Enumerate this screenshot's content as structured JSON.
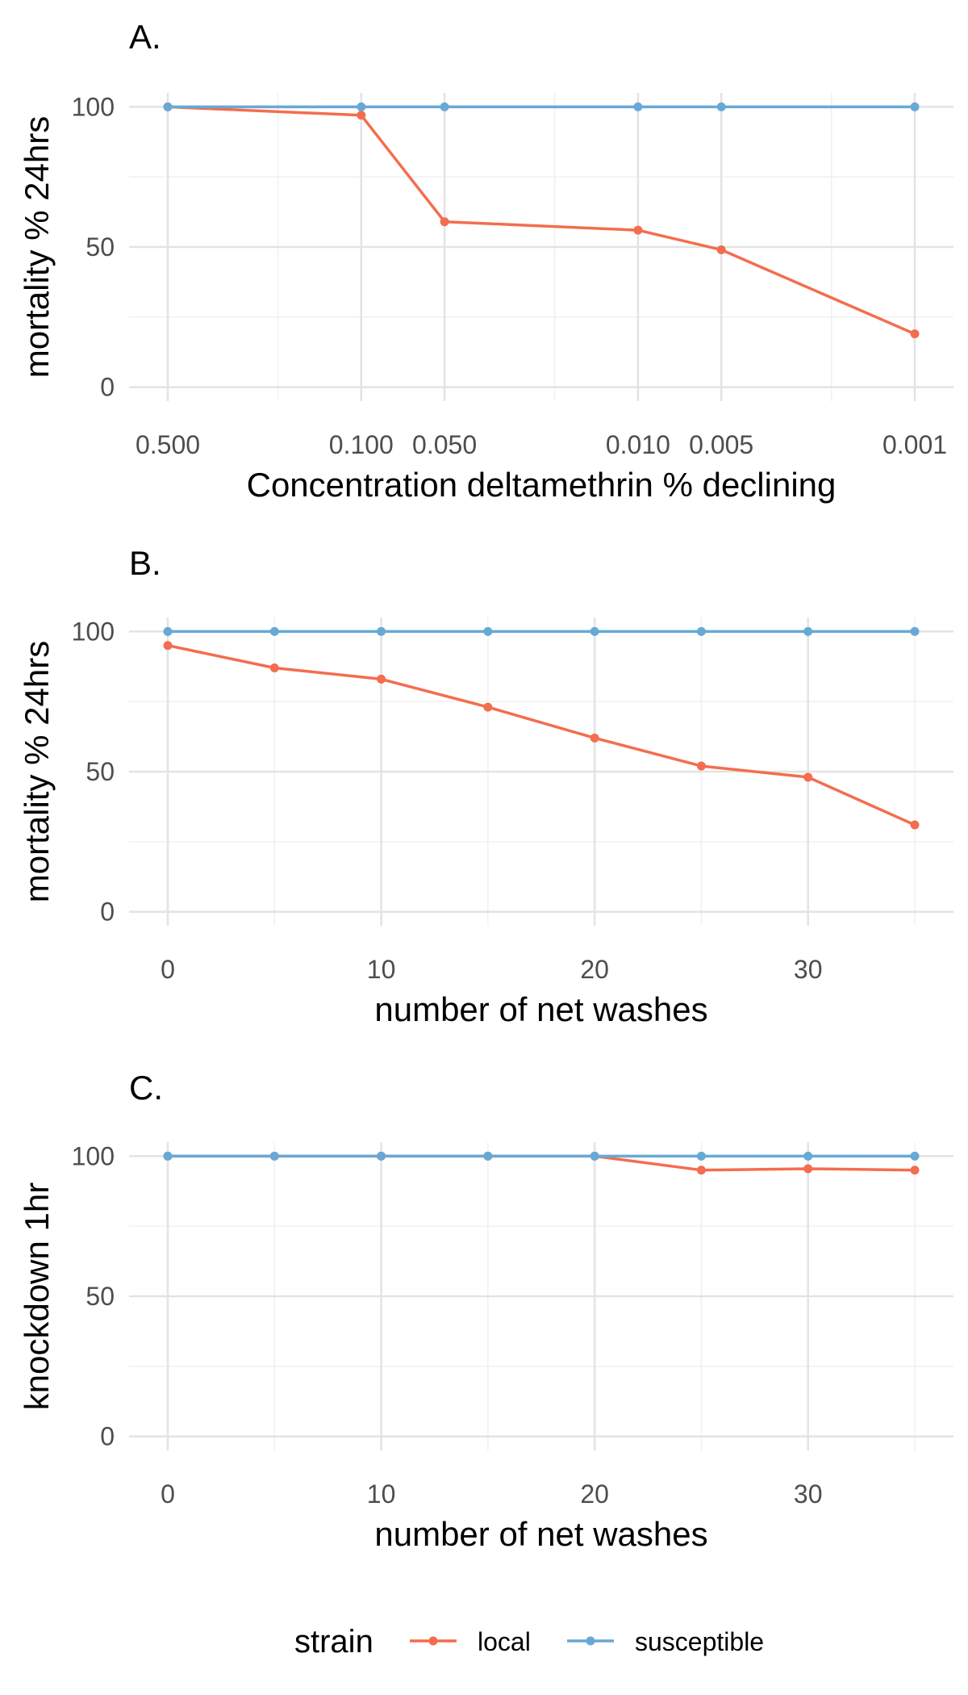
{
  "colors": {
    "local": "#F46D4E",
    "susceptible": "#67A9D6",
    "grid_major": "#E3E3E3",
    "grid_minor": "#F0F0F0"
  },
  "legend": {
    "title": "strain",
    "items": [
      {
        "name": "local",
        "color_key": "local"
      },
      {
        "name": "susceptible",
        "color_key": "susceptible"
      }
    ]
  },
  "chart_data": [
    {
      "type": "line",
      "panel": "A.",
      "xlabel": "Concentration deltamethrin % declining",
      "ylabel": "mortality % 24hrs",
      "x_scale": "log10-reversed",
      "x": [
        0.5,
        0.1,
        0.05,
        0.01,
        0.005,
        0.001
      ],
      "xticks": [
        0.5,
        0.1,
        0.05,
        0.01,
        0.005,
        0.001
      ],
      "xtick_labels": [
        "0.500",
        "0.100",
        "0.050",
        "0.010",
        "0.005",
        "0.001"
      ],
      "xlim": [
        0.5,
        0.001
      ],
      "ylim": [
        0,
        100
      ],
      "yticks": [
        0,
        50,
        100
      ],
      "ytick_labels": [
        "0",
        "50",
        "100"
      ],
      "grid": true,
      "series": [
        {
          "name": "local",
          "values": [
            100,
            97,
            59,
            56,
            49,
            19
          ]
        },
        {
          "name": "susceptible",
          "values": [
            100,
            100,
            100,
            100,
            100,
            100
          ]
        }
      ]
    },
    {
      "type": "line",
      "panel": "B.",
      "xlabel": "number of net washes",
      "ylabel": "mortality % 24hrs",
      "x": [
        0,
        5,
        10,
        15,
        20,
        25,
        30,
        35
      ],
      "xticks": [
        0,
        10,
        20,
        30
      ],
      "xtick_labels": [
        "0",
        "10",
        "20",
        "30"
      ],
      "xlim": [
        0,
        35
      ],
      "ylim": [
        0,
        100
      ],
      "yticks": [
        0,
        50,
        100
      ],
      "ytick_labels": [
        "0",
        "50",
        "100"
      ],
      "grid": true,
      "series": [
        {
          "name": "local",
          "values": [
            95,
            87,
            83,
            73,
            62,
            52,
            48,
            31
          ]
        },
        {
          "name": "susceptible",
          "values": [
            100,
            100,
            100,
            100,
            100,
            100,
            100,
            100
          ]
        }
      ]
    },
    {
      "type": "line",
      "panel": "C.",
      "xlabel": "number of net washes",
      "ylabel": "knockdown 1hr",
      "x": [
        0,
        5,
        10,
        15,
        20,
        25,
        30,
        35
      ],
      "xticks": [
        0,
        10,
        20,
        30
      ],
      "xtick_labels": [
        "0",
        "10",
        "20",
        "30"
      ],
      "xlim": [
        0,
        35
      ],
      "ylim": [
        0,
        100
      ],
      "yticks": [
        0,
        50,
        100
      ],
      "ytick_labels": [
        "0",
        "50",
        "100"
      ],
      "grid": true,
      "series": [
        {
          "name": "local",
          "values": [
            100,
            100,
            100,
            100,
            100,
            95,
            95.5,
            95
          ]
        },
        {
          "name": "susceptible",
          "values": [
            100,
            100,
            100,
            100,
            100,
            100,
            100,
            100
          ]
        }
      ]
    }
  ]
}
